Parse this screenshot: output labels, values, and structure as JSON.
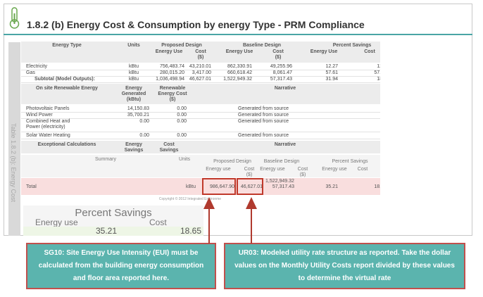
{
  "header": {
    "title": "1.8.2 (b) Energy Cost & Consumption by energy Type - PRM Compliance"
  },
  "side_label": "Table 1.8.2 (b): Energy Cost",
  "energy_table": {
    "headers": [
      "Energy Type",
      "Units",
      "Proposed Design",
      "Baseline Design",
      "Percent Savings"
    ],
    "subheaders": [
      "Energy Use",
      "Cost ($)",
      "Energy Use",
      "Cost ($)",
      "Energy Use",
      "Cost"
    ],
    "rows": [
      [
        "Electricity",
        "kBtu",
        "756,483.74",
        "43,210.01",
        "862,330.91",
        "49,255.96",
        "12.27",
        "12."
      ],
      [
        "Gas",
        "kBtu",
        "280,015.20",
        "3,417.00",
        "660,618.42",
        "8,061.47",
        "57.61",
        "57.6"
      ],
      [
        "Subtotal (Model Outputs):",
        "kBtu",
        "1,036,498.94",
        "46,627.01",
        "1,522,949.32",
        "57,317.43",
        "31.94",
        "18."
      ]
    ]
  },
  "renewable_table": {
    "headers": [
      "On site Renewable Energy",
      "Energy Generated (kBtu)",
      "Renewable Energy Cost ($)",
      "Narrative"
    ],
    "rows": [
      [
        "Photovoltaic Panels",
        "14,150.83",
        "0.00",
        "Generated from source"
      ],
      [
        "Wind Power",
        "35,700.21",
        "0.00",
        "Generated from source"
      ],
      [
        "Combined Heat and Power (electricity)",
        "0.00",
        "0.00",
        "Generated from source"
      ],
      [
        "Solar Water Heating",
        "0.00",
        "0.00",
        "Generated from source"
      ]
    ]
  },
  "exceptional_table": {
    "headers": [
      "Exceptional Calculations",
      "Energy Savings",
      "Cost Savings",
      "Narrative"
    ]
  },
  "summary_table": {
    "headers": [
      "Summary",
      "Units",
      "Proposed Design",
      "Baseline Design",
      "Percent Savings"
    ],
    "subheaders": [
      "Energy use",
      "Cost ($)",
      "Energy use",
      "Cost ($)",
      "Energy use",
      "Cost"
    ],
    "rows": [
      [
        "Total",
        "kBtu",
        "986,647.90",
        "46,627.01",
        "1,522,949.32",
        "57,317.43",
        "35.21",
        "18.6"
      ]
    ]
  },
  "copyright": "Copyright © 2012 Integrated Environme",
  "percent_savings": {
    "title": "Percent Savings",
    "headers": [
      "Energy use",
      "Cost"
    ],
    "values": [
      "35.21",
      "18.65"
    ]
  },
  "callouts": [
    {
      "text": "SG10: Site Energy Use Intensity (EUI) must be calculated from the building energy consumption and floor area reported here."
    },
    {
      "text": "UR03: Modeled utility rate structure as reported.  Take the dollar values on the Monthly Utility Costs report divided by these values to determine the virtual rate"
    }
  ]
}
